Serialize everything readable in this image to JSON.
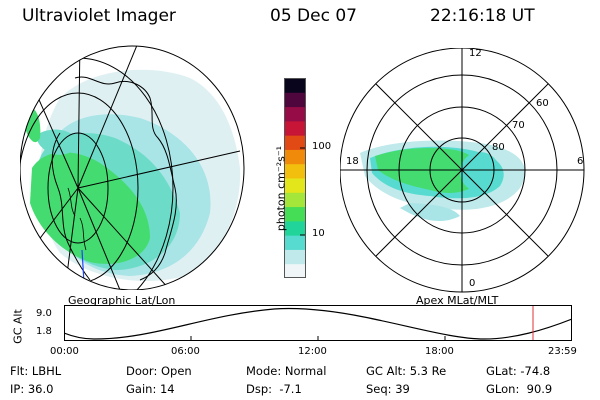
{
  "header": {
    "instrument": "Ultraviolet Imager",
    "date": "05 Dec 07",
    "time": "22:16:18 UT"
  },
  "panels": {
    "geo_caption": "Geographic Lat/Lon",
    "apex_caption": "Apex  MLat/MLT"
  },
  "colorbar": {
    "label": "photon cm⁻²s⁻¹",
    "ticks": [
      "100",
      "10"
    ],
    "colors": [
      "#f0f6f8",
      "#bfe9ea",
      "#57dbd0",
      "#21d59a",
      "#44dd55",
      "#a5e63a",
      "#e3e61b",
      "#f2bf0f",
      "#f08a0b",
      "#e24a15",
      "#c61536",
      "#960c47",
      "#4e063d",
      "#09051d"
    ]
  },
  "polar": {
    "mlt_labels": [
      "12",
      "18",
      "6",
      "0"
    ],
    "lat_labels": [
      "60",
      "70",
      "80"
    ]
  },
  "gc_plot": {
    "ylabel": "GC Alt",
    "y_ticks": [
      "9.0",
      "1.8"
    ],
    "x_ticks": [
      "00:00",
      "06:00",
      "12:00",
      "18:00",
      "23:59"
    ],
    "marker_color": "#e0303a"
  },
  "info": {
    "flt_label": "Flt:",
    "flt_value": "LBHL",
    "ip_label": "IP:",
    "ip_value": "36.0",
    "door_label": "Door:",
    "door_value": "Open",
    "gain_label": "Gain:",
    "gain_value": "14",
    "mode_label": "Mode:",
    "mode_value": "Normal",
    "dsp_label": "Dsp:",
    "dsp_value": "-7.1",
    "gcalt_label": "GC Alt:",
    "gcalt_value": "5.3 Re",
    "seq_label": "Seq:",
    "seq_value": "39",
    "glat_label": "GLat:",
    "glat_value": "-74.8",
    "glon_label": "GLon:",
    "glon_value": "90.9"
  }
}
